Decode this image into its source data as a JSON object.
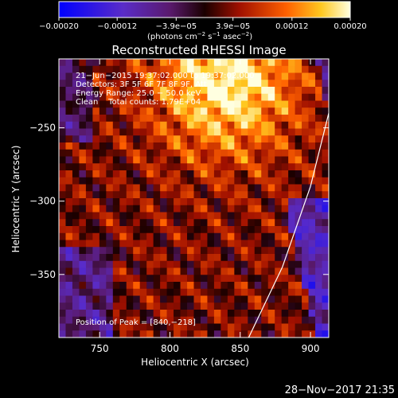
{
  "chart_data": {
    "type": "heatmap",
    "title": "Reconstructed RHESSI Image",
    "xlabel": "Heliocentric X (arcsec)",
    "ylabel": "Heliocentric Y (arcsec)",
    "xlim": [
      721,
      913
    ],
    "ylim": [
      -393,
      -203
    ],
    "x_ticks": [
      750,
      800,
      850,
      900
    ],
    "y_ticks": [
      -250,
      -300,
      -350
    ],
    "y_tick_labels": [
      "−250",
      "−300",
      "−350"
    ],
    "colorbar": {
      "range": [
        -0.0002,
        0.0002
      ],
      "ticks": [
        -0.0002,
        -0.00012,
        -3.9e-05,
        3.9e-05,
        0.00012,
        0.0002
      ],
      "tick_labels": [
        "−0.00020",
        "−0.00012",
        "−3.9e−05",
        "3.9e−05",
        "0.00012",
        "0.00020"
      ],
      "unit_parts": [
        "(photons cm",
        "−2",
        " s",
        "−1",
        " asec",
        "−2",
        ")"
      ]
    },
    "annotations": [
      "21−Jun−2015 19:37:02.000 to 19:37:02.000",
      "Detectors: 3F 5F 6F 7F 8F 9F, Att",
      "Energy Range: 25.0 − 50.0 keV",
      "Clean    Total counts: 1.79E+04"
    ],
    "peak_label": "Position of Peak = [840,−218]",
    "peak": [
      840,
      -218
    ],
    "grid_points": 40,
    "limb_curve": [
      [
        913,
        -240
      ],
      [
        900,
        -290
      ],
      [
        880,
        -345
      ],
      [
        870,
        -365
      ],
      [
        856,
        -393
      ]
    ]
  },
  "footer": {
    "timestamp": "28−Nov−2017 21:35"
  }
}
